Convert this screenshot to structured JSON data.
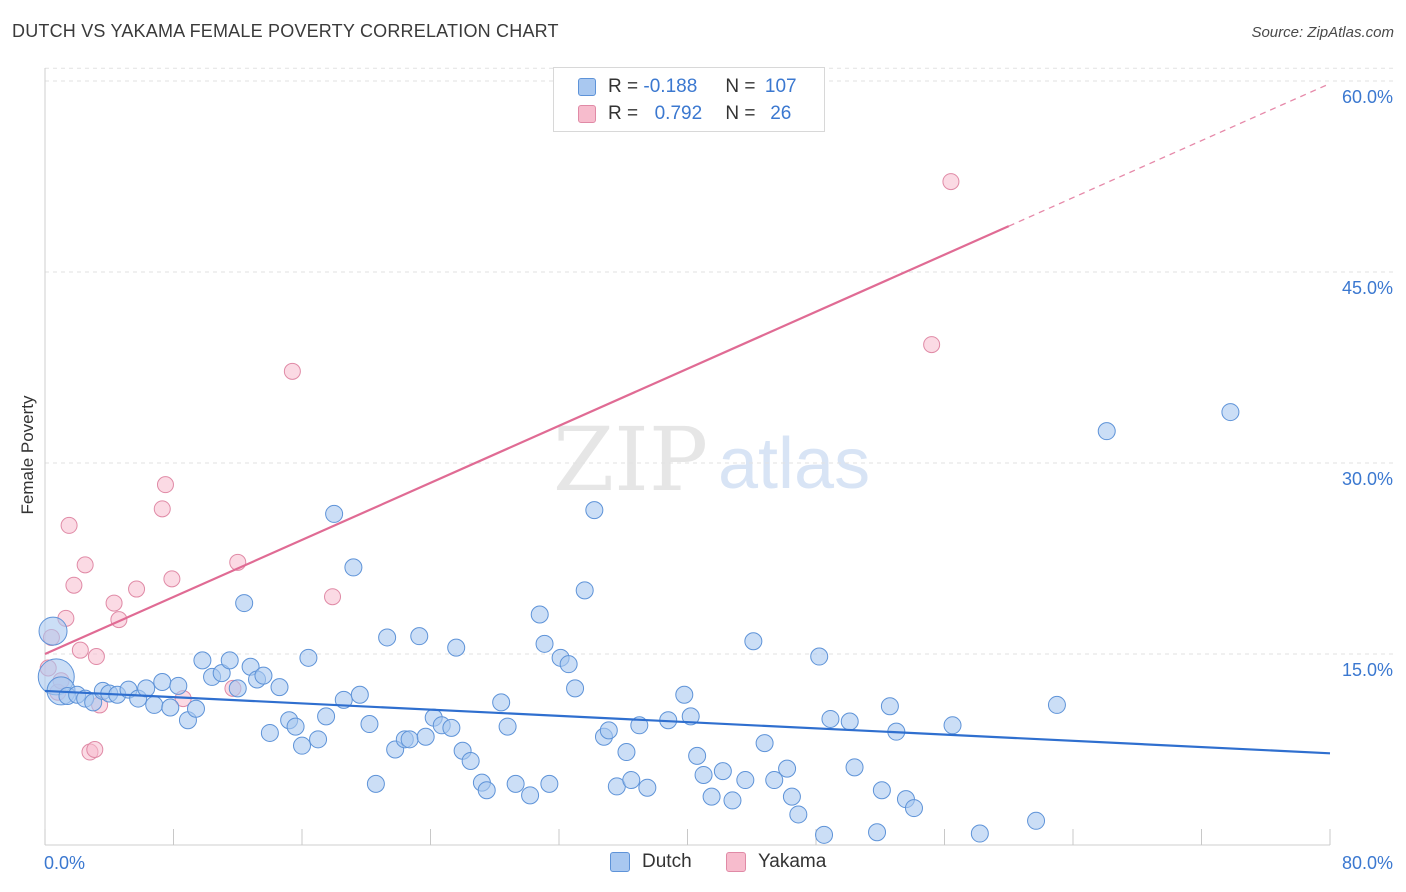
{
  "title": "DUTCH VS YAKAMA FEMALE POVERTY CORRELATION CHART",
  "source": "Source: ZipAtlas.com",
  "colors": {
    "dutch_fill": "#a9c8f0",
    "dutch_stroke": "#5e93d8",
    "dutch_line": "#2f6fcf",
    "yakama_fill": "#f7bccd",
    "yakama_stroke": "#e08aa6",
    "yakama_line": "#e06b94",
    "tick_color": "#3b78d0",
    "grid": "#e2e2e2"
  },
  "legend": {
    "rows": [
      {
        "series": "Dutch",
        "r_label": "R =",
        "r_value": "-0.188",
        "n_label": "N =",
        "n_value": "107"
      },
      {
        "series": "Yakama",
        "r_label": "R =",
        "r_value": "0.792",
        "n_label": "N =",
        "n_value": "26"
      }
    ]
  },
  "bottom_legend": [
    "Dutch",
    "Yakama"
  ],
  "watermark": {
    "zip": "ZIP",
    "atlas": "atlas"
  },
  "chart_data": {
    "type": "scatter",
    "title": "DUTCH VS YAKAMA FEMALE POVERTY CORRELATION CHART",
    "xlabel": "",
    "ylabel": "Female Poverty",
    "xlim": [
      0,
      80
    ],
    "ylim": [
      0,
      62
    ],
    "x_tick_labels": [
      "0.0%",
      "80.0%"
    ],
    "y_ticks": [
      15,
      30,
      45,
      60
    ],
    "y_tick_labels": [
      "15.0%",
      "30.0%",
      "45.0%",
      "60.0%"
    ],
    "grid": "horizontal dashed",
    "legend_placement": "bottom-center",
    "series": [
      {
        "name": "Dutch",
        "r": -0.188,
        "n": 107,
        "trend": {
          "x0": 0,
          "y0": 12.1,
          "x1": 80,
          "y1": 7.2,
          "dashed_from_x": null
        },
        "points": [
          [
            0.5,
            16.8
          ],
          [
            0.7,
            13.2
          ],
          [
            1.0,
            12.1
          ],
          [
            1.4,
            11.7
          ],
          [
            2.0,
            11.8
          ],
          [
            2.5,
            11.5
          ],
          [
            3.0,
            11.2
          ],
          [
            3.6,
            12.1
          ],
          [
            4.0,
            11.9
          ],
          [
            4.5,
            11.8
          ],
          [
            5.2,
            12.2
          ],
          [
            5.8,
            11.5
          ],
          [
            6.3,
            12.3
          ],
          [
            6.8,
            11.0
          ],
          [
            7.3,
            12.8
          ],
          [
            7.8,
            10.8
          ],
          [
            8.3,
            12.5
          ],
          [
            8.9,
            9.8
          ],
          [
            9.4,
            10.7
          ],
          [
            9.8,
            14.5
          ],
          [
            10.4,
            13.2
          ],
          [
            11.0,
            13.5
          ],
          [
            11.5,
            14.5
          ],
          [
            12.0,
            12.3
          ],
          [
            12.4,
            19.0
          ],
          [
            12.8,
            14.0
          ],
          [
            13.2,
            13.0
          ],
          [
            13.6,
            13.3
          ],
          [
            14.0,
            8.8
          ],
          [
            14.6,
            12.4
          ],
          [
            15.2,
            9.8
          ],
          [
            15.6,
            9.3
          ],
          [
            16.0,
            7.8
          ],
          [
            16.4,
            14.7
          ],
          [
            17.0,
            8.3
          ],
          [
            17.5,
            10.1
          ],
          [
            18.0,
            26.0
          ],
          [
            18.6,
            11.4
          ],
          [
            19.2,
            21.8
          ],
          [
            19.6,
            11.8
          ],
          [
            20.2,
            9.5
          ],
          [
            20.6,
            4.8
          ],
          [
            21.3,
            16.3
          ],
          [
            21.8,
            7.5
          ],
          [
            22.4,
            8.3
          ],
          [
            22.7,
            8.3
          ],
          [
            23.3,
            16.4
          ],
          [
            23.7,
            8.5
          ],
          [
            24.2,
            10.0
          ],
          [
            24.7,
            9.4
          ],
          [
            25.3,
            9.2
          ],
          [
            25.6,
            15.5
          ],
          [
            26.0,
            7.4
          ],
          [
            26.5,
            6.6
          ],
          [
            27.2,
            4.9
          ],
          [
            27.5,
            4.3
          ],
          [
            28.4,
            11.2
          ],
          [
            28.8,
            9.3
          ],
          [
            29.3,
            4.8
          ],
          [
            30.2,
            3.9
          ],
          [
            30.8,
            18.1
          ],
          [
            31.1,
            15.8
          ],
          [
            31.4,
            4.8
          ],
          [
            32.1,
            14.7
          ],
          [
            32.6,
            14.2
          ],
          [
            33.0,
            12.3
          ],
          [
            33.6,
            20.0
          ],
          [
            34.2,
            26.3
          ],
          [
            34.8,
            8.5
          ],
          [
            35.1,
            9.0
          ],
          [
            35.6,
            4.6
          ],
          [
            36.2,
            7.3
          ],
          [
            36.5,
            5.1
          ],
          [
            37.0,
            9.4
          ],
          [
            37.5,
            4.5
          ],
          [
            38.8,
            9.8
          ],
          [
            39.8,
            11.8
          ],
          [
            40.2,
            10.1
          ],
          [
            40.6,
            7.0
          ],
          [
            41.0,
            5.5
          ],
          [
            41.5,
            3.8
          ],
          [
            42.2,
            5.8
          ],
          [
            42.8,
            3.5
          ],
          [
            43.6,
            5.1
          ],
          [
            44.1,
            16.0
          ],
          [
            44.8,
            8.0
          ],
          [
            45.4,
            5.1
          ],
          [
            46.2,
            6.0
          ],
          [
            46.5,
            3.8
          ],
          [
            46.9,
            2.4
          ],
          [
            48.2,
            14.8
          ],
          [
            48.5,
            0.8
          ],
          [
            48.9,
            9.9
          ],
          [
            50.1,
            9.7
          ],
          [
            50.4,
            6.1
          ],
          [
            51.8,
            1.0
          ],
          [
            52.1,
            4.3
          ],
          [
            52.6,
            10.9
          ],
          [
            53.0,
            8.9
          ],
          [
            53.6,
            3.6
          ],
          [
            54.1,
            2.9
          ],
          [
            56.5,
            9.4
          ],
          [
            58.2,
            0.9
          ],
          [
            61.7,
            1.9
          ],
          [
            63.0,
            11.0
          ],
          [
            66.1,
            32.5
          ],
          [
            73.8,
            34.0
          ]
        ]
      },
      {
        "name": "Yakama",
        "r": 0.792,
        "n": 26,
        "trend": {
          "x0": 0,
          "y0": 15.0,
          "x1": 60,
          "y1": 48.6,
          "x_end": 80,
          "y_end": 59.8,
          "dashed_from_x": 60
        },
        "points": [
          [
            0.2,
            13.9
          ],
          [
            0.4,
            16.3
          ],
          [
            0.8,
            12.0
          ],
          [
            1.0,
            12.9
          ],
          [
            1.3,
            17.8
          ],
          [
            1.5,
            25.1
          ],
          [
            1.8,
            20.4
          ],
          [
            2.2,
            15.3
          ],
          [
            2.5,
            22.0
          ],
          [
            2.8,
            7.3
          ],
          [
            3.1,
            7.5
          ],
          [
            3.2,
            14.8
          ],
          [
            3.4,
            11.0
          ],
          [
            4.3,
            19.0
          ],
          [
            4.6,
            17.7
          ],
          [
            5.7,
            20.1
          ],
          [
            7.3,
            26.4
          ],
          [
            7.5,
            28.3
          ],
          [
            7.9,
            20.9
          ],
          [
            8.6,
            11.5
          ],
          [
            11.7,
            12.3
          ],
          [
            12.0,
            22.2
          ],
          [
            15.4,
            37.2
          ],
          [
            17.9,
            19.5
          ],
          [
            55.2,
            39.3
          ],
          [
            56.4,
            52.1
          ]
        ]
      }
    ]
  }
}
